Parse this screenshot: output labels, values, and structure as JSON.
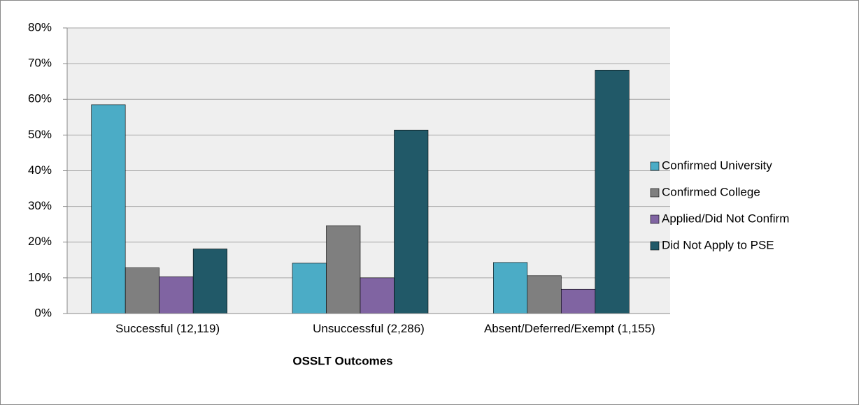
{
  "chart_data": {
    "type": "bar",
    "x_label": "OSSLT Outcomes",
    "categories": [
      "Successful (12,119)",
      "Unsuccessful (2,286)",
      "Absent/Deferred/Exempt (1,155)"
    ],
    "series": [
      {
        "name": "Confirmed University",
        "color": "#4bacc6",
        "values": [
          58.5,
          14.1,
          14.3
        ]
      },
      {
        "name": "Confirmed College",
        "color": "#7f7f7f",
        "values": [
          12.8,
          24.6,
          10.6
        ]
      },
      {
        "name": "Applied/Did Not Confirm",
        "color": "#8064a2",
        "values": [
          10.3,
          10.0,
          6.8
        ]
      },
      {
        "name": "Did Not Apply to PSE",
        "color": "#215968",
        "values": [
          18.1,
          51.4,
          68.2
        ]
      }
    ],
    "ylim": [
      0,
      80
    ],
    "yticks": [
      {
        "value": 0,
        "label": "0%"
      },
      {
        "value": 10,
        "label": "10%"
      },
      {
        "value": 20,
        "label": "20%"
      },
      {
        "value": 30,
        "label": "30%"
      },
      {
        "value": 40,
        "label": "40%"
      },
      {
        "value": 50,
        "label": "50%"
      },
      {
        "value": 60,
        "label": "60%"
      },
      {
        "value": 70,
        "label": "70%"
      },
      {
        "value": 80,
        "label": "80%"
      }
    ],
    "grid": true,
    "legend": "right"
  }
}
